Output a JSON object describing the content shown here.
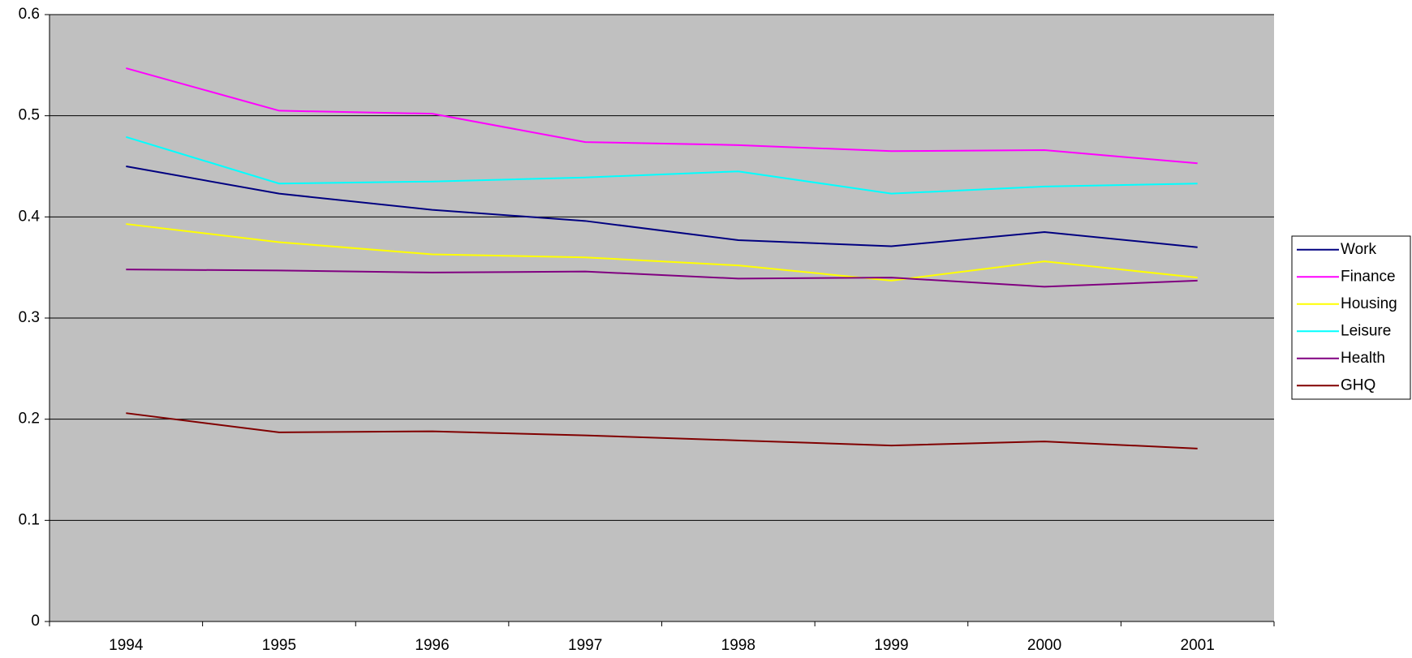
{
  "chart_data": {
    "type": "line",
    "categories": [
      "1994",
      "1995",
      "1996",
      "1997",
      "1998",
      "1999",
      "2000",
      "2001"
    ],
    "series": [
      {
        "name": "Work",
        "color": "#000080",
        "values": [
          0.45,
          0.423,
          0.407,
          0.396,
          0.377,
          0.371,
          0.385,
          0.37
        ]
      },
      {
        "name": "Finance",
        "color": "#ff00ff",
        "values": [
          0.547,
          0.505,
          0.502,
          0.474,
          0.471,
          0.465,
          0.466,
          0.453
        ]
      },
      {
        "name": "Housing",
        "color": "#ffff00",
        "values": [
          0.393,
          0.375,
          0.363,
          0.36,
          0.352,
          0.337,
          0.356,
          0.34
        ]
      },
      {
        "name": "Leisure",
        "color": "#00ffff",
        "values": [
          0.479,
          0.433,
          0.435,
          0.439,
          0.445,
          0.423,
          0.43,
          0.433
        ]
      },
      {
        "name": "Health",
        "color": "#800080",
        "values": [
          0.348,
          0.347,
          0.345,
          0.346,
          0.339,
          0.34,
          0.331,
          0.337
        ]
      },
      {
        "name": "GHQ",
        "color": "#800000",
        "values": [
          0.206,
          0.187,
          0.188,
          0.184,
          0.179,
          0.174,
          0.178,
          0.171
        ]
      }
    ],
    "ylim": [
      0,
      0.6
    ],
    "yticks": [
      0,
      0.1,
      0.2,
      0.3,
      0.4,
      0.5,
      0.6
    ],
    "grid": true,
    "legend": "right",
    "background": "#c0c0c0"
  }
}
